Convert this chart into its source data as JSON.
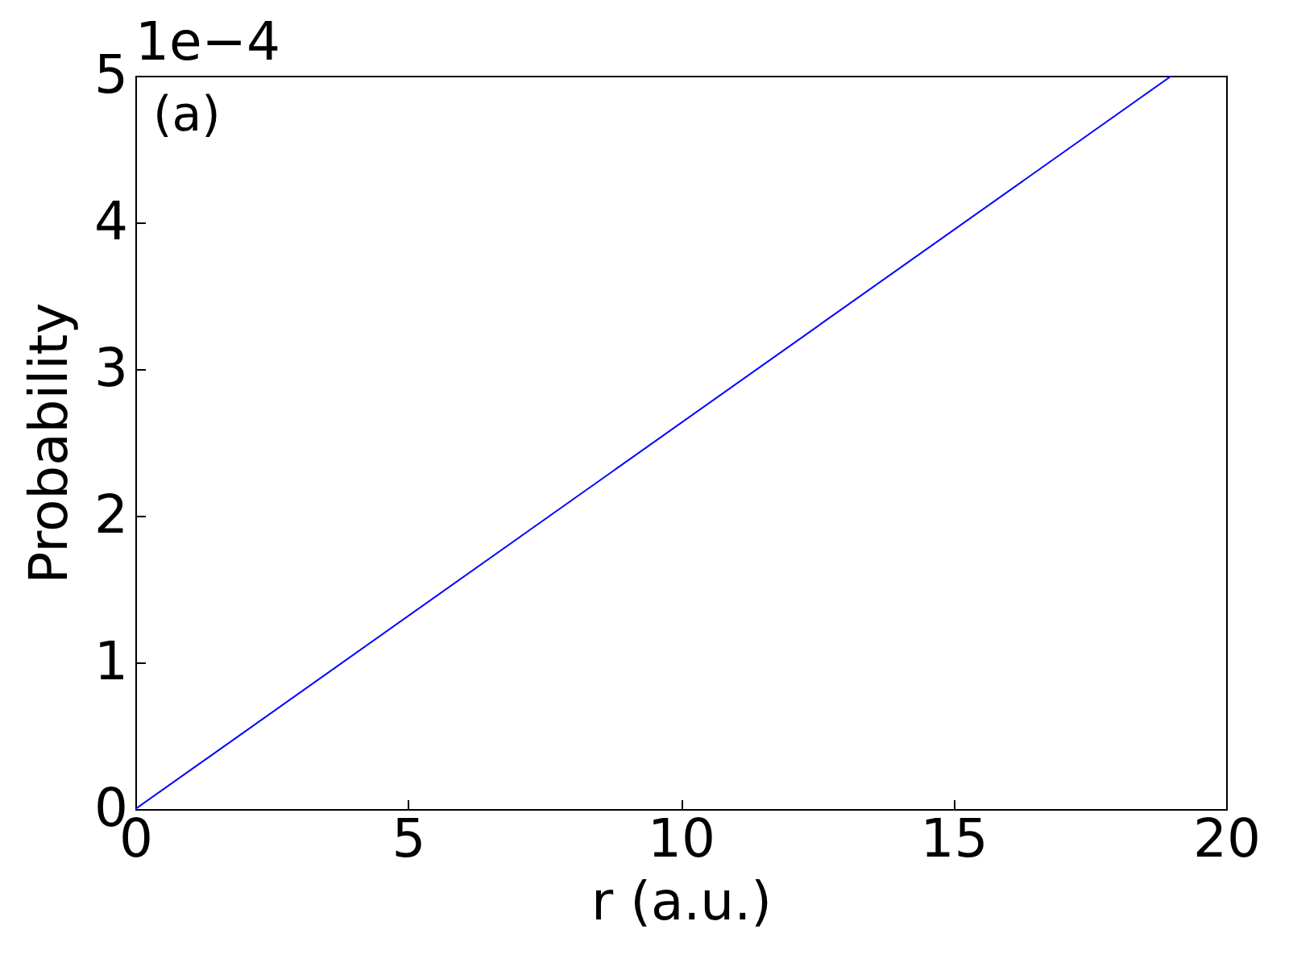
{
  "chart_data": {
    "type": "line",
    "xlabel": "r (a.u.)",
    "ylabel": "Probability",
    "annotations": [
      "1e−4",
      "(a)"
    ],
    "x": [
      0,
      19
    ],
    "series": [
      {
        "color": "#0000ff",
        "values": [
          0,
          5
        ]
      }
    ],
    "xlim": [
      0,
      20
    ],
    "ylim": [
      0,
      5
    ],
    "xticks": [
      0,
      5,
      10,
      15,
      20
    ],
    "yticks": [
      0,
      1,
      2,
      3,
      4,
      5
    ],
    "grid": false,
    "marker": "none",
    "line_style": "solid"
  }
}
